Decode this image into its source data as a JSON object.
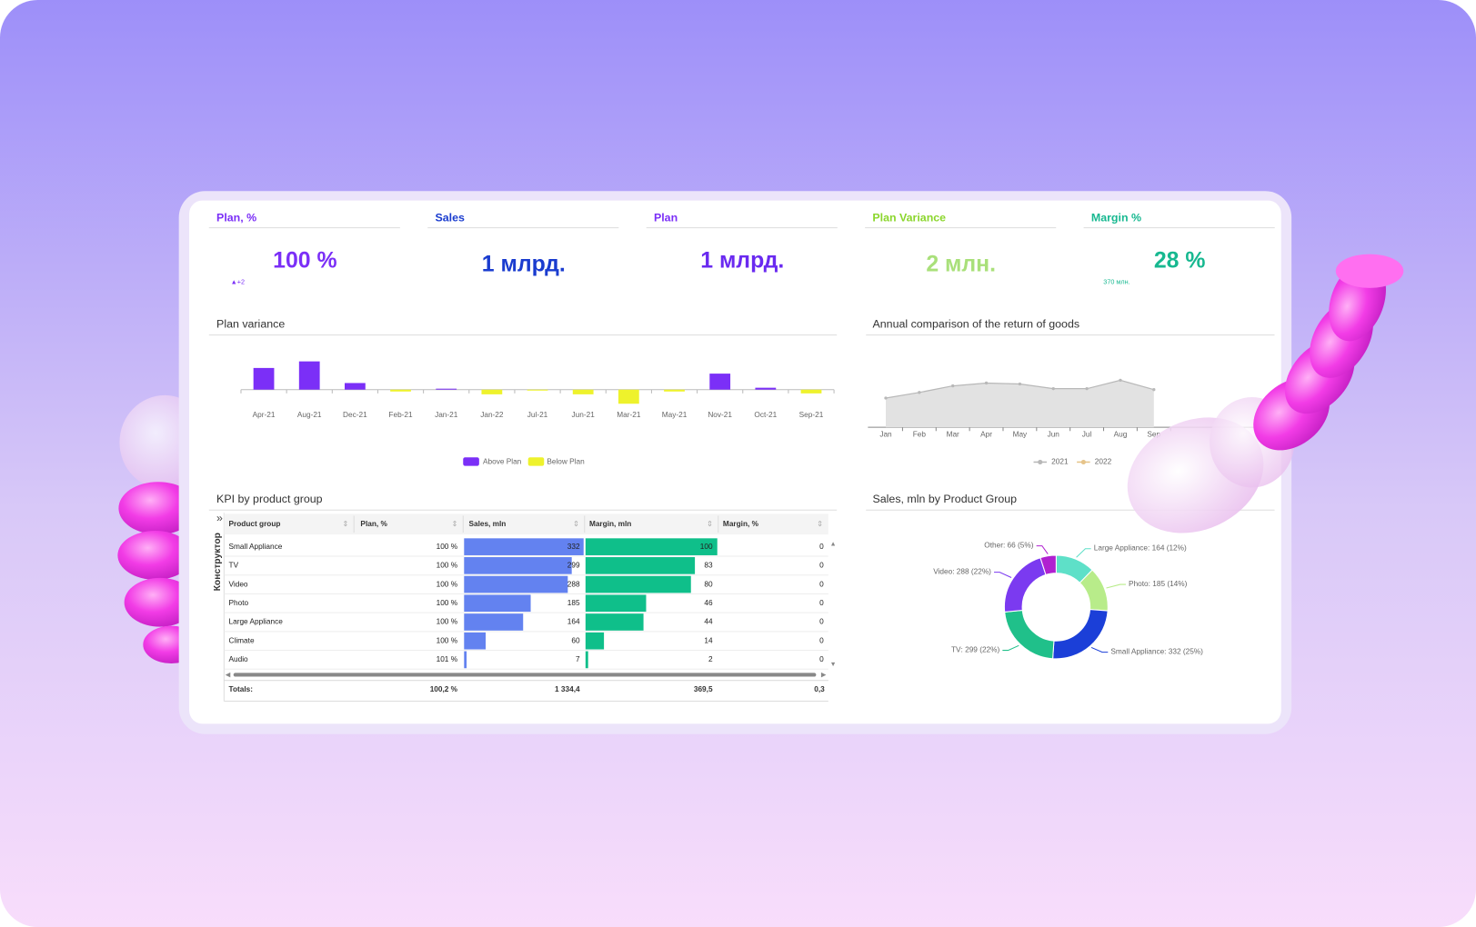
{
  "kpis": [
    {
      "title": "Plan, %",
      "value": "100 %",
      "note": "▲+2",
      "title_color": "#7b2ff7",
      "color": "#7b2ff7"
    },
    {
      "title": "Sales",
      "value": "1 млрд.",
      "title_color": "#1a3ccf",
      "color": "#1a3ccf"
    },
    {
      "title": "Plan",
      "value": "1 млрд.",
      "title_color": "#7b2ff7",
      "color": "#6a2af0"
    },
    {
      "title": "Plan Variance",
      "value": "2 млн.",
      "title_color": "#8bd62c",
      "color": "#a9e07a"
    },
    {
      "title": "Margin %",
      "value": "28 %",
      "note": "370 млн.",
      "title_color": "#17b890",
      "color": "#17b890"
    }
  ],
  "chart_data": [
    {
      "type": "bar",
      "title": "Plan variance",
      "categories": [
        "Apr-21",
        "Aug-21",
        "Dec-21",
        "Feb-21",
        "Jan-21",
        "Jan-22",
        "Jul-21",
        "Jun-21",
        "Mar-21",
        "May-21",
        "Nov-21",
        "Oct-21",
        "Sep-21"
      ],
      "values": [
        23,
        30,
        7,
        -2,
        1,
        -5,
        -1,
        -5,
        -15,
        -2,
        17,
        2,
        -4
      ],
      "series": [
        {
          "name": "Above Plan",
          "color": "#7b2ff7"
        },
        {
          "name": "Below Plan",
          "color": "#eef22c"
        }
      ]
    },
    {
      "type": "area",
      "title": "Annual comparison of the return of goods",
      "categories": [
        "Jan",
        "Feb",
        "Mar",
        "Apr",
        "May",
        "Jun",
        "Jul",
        "Aug",
        "Sep"
      ],
      "series": [
        {
          "name": "2021",
          "color": "#b8b8b8",
          "values": [
            31,
            37,
            44,
            47,
            46,
            41,
            41,
            50,
            40
          ]
        },
        {
          "name": "2022",
          "color": "#e6c48a",
          "values": [
            null,
            null,
            null,
            null,
            null,
            null,
            null,
            null,
            null
          ]
        }
      ]
    },
    {
      "type": "donut",
      "title": "Sales, mln by Product Group",
      "categories": [
        "Large Appliance",
        "Photo",
        "Small Appliance",
        "TV",
        "Video",
        "Other"
      ],
      "values": [
        164,
        185,
        332,
        299,
        288,
        66
      ],
      "value_labels": [
        "164 (12%)",
        "185 (14%)",
        "332 (25%)",
        "299 (22%)",
        "288 (22%)",
        "66 (5%)"
      ],
      "colors": [
        "#5ee0c8",
        "#b8ec8a",
        "#1b3fd8",
        "#20c08a",
        "#7b3af0",
        "#b020d0"
      ]
    }
  ],
  "table": {
    "title": "KPI by product group",
    "sidebar": "Конструктор",
    "columns": [
      "Product group",
      "Plan, %",
      "Sales, mln",
      "Margin, mln",
      "Margin, %"
    ],
    "bar_colors": [
      "#6382f0",
      "#0fbf8a"
    ],
    "rows": [
      [
        "Small Appliance",
        "100 %",
        332,
        100,
        0
      ],
      [
        "TV",
        "100 %",
        299,
        83,
        0
      ],
      [
        "Video",
        "100 %",
        288,
        80,
        0
      ],
      [
        "Photo",
        "100 %",
        185,
        46,
        0
      ],
      [
        "Large Appliance",
        "100 %",
        164,
        44,
        0
      ],
      [
        "Climate",
        "100 %",
        60,
        14,
        0
      ],
      [
        "Audio",
        "101 %",
        7,
        2,
        0
      ]
    ],
    "totals": [
      "Totals:",
      "100,2 %",
      "1 334,4",
      "369,5",
      "0,3"
    ]
  }
}
